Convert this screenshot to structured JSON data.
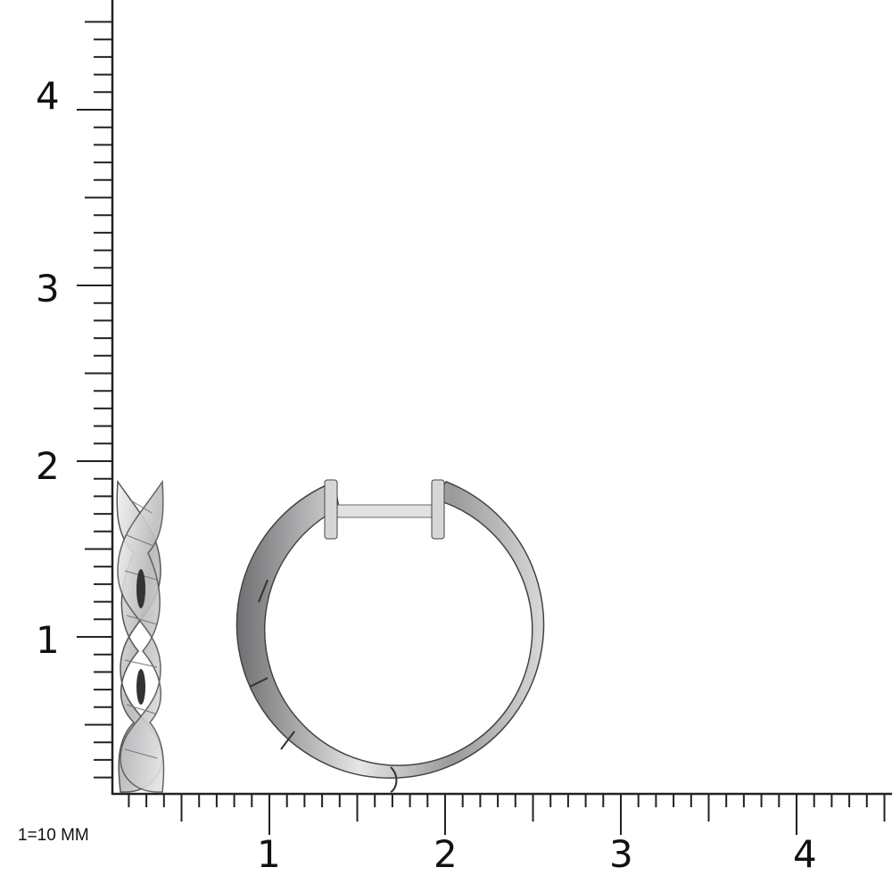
{
  "scale_note": "1=10 MM",
  "vertical_ruler": {
    "labels": [
      "1",
      "2",
      "3",
      "4"
    ]
  },
  "horizontal_ruler": {
    "labels": [
      "1",
      "2",
      "3",
      "4"
    ]
  },
  "product": {
    "metal_color": "#c9c9cb",
    "shadow_color": "#5a5a5c"
  }
}
